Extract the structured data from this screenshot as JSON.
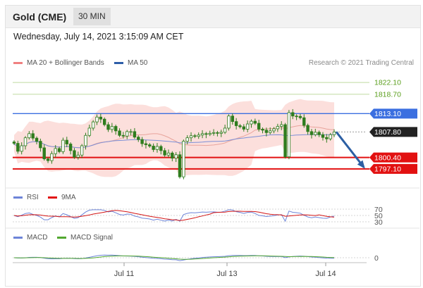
{
  "header": {
    "instrument": "Gold (CME)",
    "timeframe": "30 MIN"
  },
  "datetime": "Wednesday, July 14, 2021 3:15:09 AM CET",
  "legend": {
    "ma20": "MA 20 + Bollinger Bands",
    "ma50": "MA 50",
    "credit": "Research © 2021 Trading Central"
  },
  "rsi_legend": {
    "rsi": "RSI",
    "ma9": "9MA"
  },
  "macd_legend": {
    "macd": "MACD",
    "signal": "MACD Signal"
  },
  "colors": {
    "candle": "#2f7d1e",
    "bollinger": "#fbd9d6",
    "ma20": "#e8a49c",
    "ma50": "#7c8fd6",
    "red_line": "#e21111",
    "blue_line": "#3b6fe0",
    "green_line": "#bfdba0",
    "arrow": "#2c5fa3"
  },
  "chart_data": {
    "type": "candlestick",
    "price_axis": {
      "min": 1793,
      "max": 1826
    },
    "x_ticks": [
      "Jul 11",
      "Jul 13",
      "Jul 14"
    ],
    "levels": [
      {
        "value": 1822.1,
        "label": "1822.10",
        "kind": "resistance"
      },
      {
        "value": 1818.7,
        "label": "1818.70",
        "kind": "resistance"
      },
      {
        "value": 1813.1,
        "label": "1813.10",
        "kind": "ma50"
      },
      {
        "value": 1807.8,
        "label": "1807.80",
        "kind": "current"
      },
      {
        "value": 1800.4,
        "label": "1800.40",
        "kind": "support"
      },
      {
        "value": 1797.1,
        "label": "1797.10",
        "kind": "support"
      }
    ],
    "closes": [
      1804.5,
      1802.2,
      1803.8,
      1806.1,
      1807.3,
      1806.0,
      1805.1,
      1803.2,
      1800.0,
      1799.5,
      1801.5,
      1803.0,
      1802.1,
      1805.4,
      1804.3,
      1802.4,
      1800.5,
      1801.1,
      1803.8,
      1806.8,
      1808.9,
      1810.7,
      1812.1,
      1811.5,
      1809.9,
      1808.5,
      1809.4,
      1808.1,
      1806.8,
      1806.6,
      1807.9,
      1807.9,
      1806.3,
      1805.6,
      1804.4,
      1804.1,
      1803.7,
      1802.7,
      1803.6,
      1802.4,
      1801.1,
      1801.7,
      1800.2,
      1801.2,
      1794.8,
      1805.1,
      1806.1,
      1806.7,
      1806.5,
      1806.9,
      1807.3,
      1807.1,
      1807.4,
      1807.6,
      1807.4,
      1807.7,
      1808.9,
      1812.4,
      1810.8,
      1809.6,
      1809.3,
      1808.6,
      1810.1,
      1810.9,
      1810.3,
      1808.6,
      1808.3,
      1807.6,
      1808.1,
      1808.7,
      1809.4,
      1809.9,
      1800.6,
      1813.4,
      1812.4,
      1812.3,
      1811.9,
      1809.7,
      1807.9,
      1807.0,
      1807.7,
      1807.0,
      1806.2,
      1805.8,
      1807.0,
      1807.8
    ],
    "rsi": {
      "ticks": [
        "70",
        "50",
        "30"
      ],
      "min": 30,
      "max": 70
    },
    "macd": {
      "ticks": [
        "0"
      ]
    }
  }
}
